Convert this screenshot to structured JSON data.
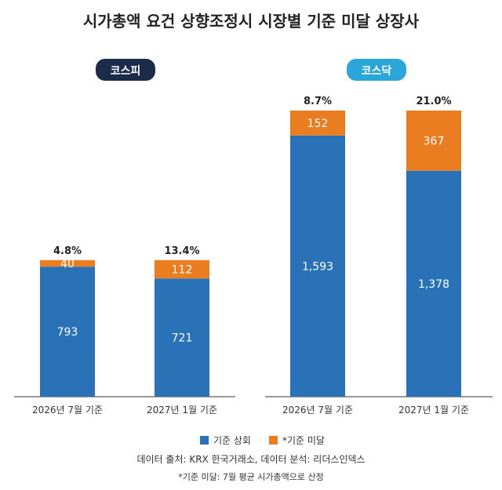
{
  "title": "시가총액 요건 상향조정시 시장별 기준 미달 상장사",
  "colors": {
    "above": "#2a72b8",
    "below": "#ea7d1f",
    "kospi_badge": "#1c2b4a",
    "kosdaq_badge": "#2aa6d8",
    "axis": "#333333"
  },
  "chart_data": [
    {
      "type": "bar",
      "stacked": true,
      "market": "코스피",
      "categories": [
        "2026년 7월 기준",
        "2027년 1월 기준"
      ],
      "series": [
        {
          "name": "기준 상회",
          "values": [
            793,
            721
          ]
        },
        {
          "name": "*기준 미달",
          "values": [
            40,
            112
          ]
        }
      ],
      "top_labels": [
        "4.8%",
        "13.4%"
      ],
      "value_labels": [
        [
          "793",
          "721"
        ],
        [
          "40",
          "112"
        ]
      ]
    },
    {
      "type": "bar",
      "stacked": true,
      "market": "코스닥",
      "categories": [
        "2026년 7월 기준",
        "2027년 1월 기준"
      ],
      "series": [
        {
          "name": "기준 상회",
          "values": [
            1593,
            1378
          ]
        },
        {
          "name": "*기준 미달",
          "values": [
            152,
            367
          ]
        }
      ],
      "top_labels": [
        "8.7%",
        "21.0%"
      ],
      "value_labels": [
        [
          "1,593",
          "1,378"
        ],
        [
          "152",
          "367"
        ]
      ]
    }
  ],
  "legend": [
    "기준 상회",
    "*기준 미달"
  ],
  "source_note": "데이터 출처: KRX 한국거래소, 데이터 분석: 리더스인덱스",
  "footnote": "*기준 미달: 7월 평균 시가총액으로 산정"
}
